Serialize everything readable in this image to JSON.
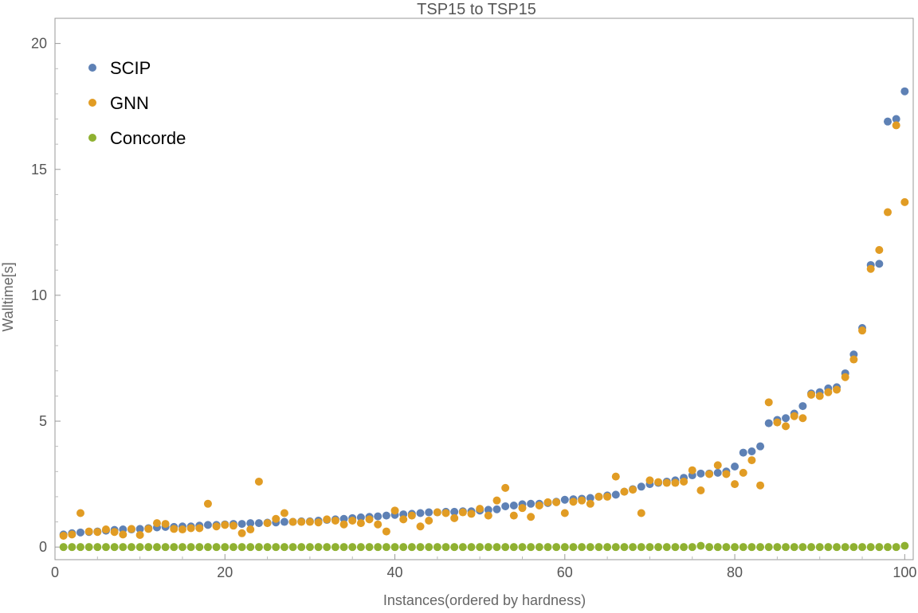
{
  "chart_data": {
    "type": "scatter",
    "title": "TSP15 to TSP15",
    "xlabel": "Instances(ordered by hardness)",
    "ylabel": "Walltime[s]",
    "xlim": [
      0,
      101
    ],
    "ylim": [
      -0.5,
      21
    ],
    "xticks": [
      0,
      20,
      40,
      60,
      80,
      100
    ],
    "yticks": [
      0,
      5,
      10,
      15,
      20
    ],
    "legend_position": "top-left",
    "x": [
      1,
      2,
      3,
      4,
      5,
      6,
      7,
      8,
      9,
      10,
      11,
      12,
      13,
      14,
      15,
      16,
      17,
      18,
      19,
      20,
      21,
      22,
      23,
      24,
      25,
      26,
      27,
      28,
      29,
      30,
      31,
      32,
      33,
      34,
      35,
      36,
      37,
      38,
      39,
      40,
      41,
      42,
      43,
      44,
      45,
      46,
      47,
      48,
      49,
      50,
      51,
      52,
      53,
      54,
      55,
      56,
      57,
      58,
      59,
      60,
      61,
      62,
      63,
      64,
      65,
      66,
      67,
      68,
      69,
      70,
      71,
      72,
      73,
      74,
      75,
      76,
      77,
      78,
      79,
      80,
      81,
      82,
      83,
      84,
      85,
      86,
      87,
      88,
      89,
      90,
      91,
      92,
      93,
      94,
      95,
      96,
      97,
      98,
      99,
      100
    ],
    "series": [
      {
        "name": "SCIP",
        "color": "#5E81B5",
        "values": [
          0.5,
          0.55,
          0.58,
          0.6,
          0.62,
          0.65,
          0.68,
          0.7,
          0.7,
          0.72,
          0.75,
          0.78,
          0.8,
          0.8,
          0.82,
          0.82,
          0.85,
          0.88,
          0.88,
          0.9,
          0.92,
          0.92,
          0.95,
          0.95,
          0.97,
          0.98,
          1.0,
          1.0,
          1.02,
          1.02,
          1.05,
          1.08,
          1.1,
          1.12,
          1.15,
          1.18,
          1.2,
          1.22,
          1.25,
          1.28,
          1.3,
          1.32,
          1.35,
          1.38,
          1.38,
          1.4,
          1.4,
          1.42,
          1.42,
          1.45,
          1.48,
          1.5,
          1.62,
          1.65,
          1.7,
          1.72,
          1.72,
          1.75,
          1.8,
          1.88,
          1.9,
          1.92,
          1.95,
          2.0,
          2.05,
          2.08,
          2.2,
          2.3,
          2.4,
          2.5,
          2.55,
          2.6,
          2.65,
          2.75,
          2.85,
          2.92,
          2.92,
          2.95,
          3.0,
          3.2,
          3.75,
          3.8,
          4.0,
          4.92,
          5.05,
          5.12,
          5.3,
          5.6,
          6.1,
          6.15,
          6.3,
          6.35,
          6.9,
          7.65,
          8.7,
          11.2,
          11.25,
          16.9,
          17.0,
          18.1
        ]
      },
      {
        "name": "GNN",
        "color": "#E19C24",
        "values": [
          0.45,
          0.5,
          1.35,
          0.62,
          0.6,
          0.7,
          0.6,
          0.5,
          0.72,
          0.48,
          0.72,
          0.95,
          0.92,
          0.72,
          0.7,
          0.75,
          0.75,
          1.72,
          0.82,
          0.88,
          0.85,
          0.55,
          0.7,
          2.6,
          0.95,
          1.12,
          1.35,
          1.0,
          1.0,
          1.0,
          0.98,
          1.1,
          1.05,
          0.9,
          1.05,
          0.95,
          1.1,
          0.9,
          0.62,
          1.45,
          1.1,
          1.25,
          0.82,
          1.05,
          1.38,
          1.35,
          1.15,
          1.38,
          1.32,
          1.52,
          1.25,
          1.85,
          2.35,
          1.25,
          1.55,
          1.2,
          1.65,
          1.78,
          1.78,
          1.35,
          1.8,
          1.85,
          1.72,
          2.0,
          2.0,
          2.8,
          2.2,
          2.28,
          1.35,
          2.65,
          2.58,
          2.55,
          2.55,
          2.6,
          3.05,
          2.25,
          2.9,
          3.25,
          2.9,
          2.5,
          2.95,
          3.45,
          2.45,
          5.75,
          4.95,
          4.8,
          5.2,
          5.12,
          6.05,
          6.0,
          6.15,
          6.25,
          6.75,
          7.45,
          8.6,
          11.05,
          11.8,
          13.3,
          16.75,
          13.7
        ]
      },
      {
        "name": "Concorde",
        "color": "#8FB131",
        "values": [
          0,
          0,
          0,
          0,
          0,
          0,
          0,
          0,
          0,
          0,
          0,
          0,
          0,
          0,
          0,
          0,
          0,
          0,
          0,
          0,
          0,
          0,
          0,
          0,
          0,
          0,
          0,
          0,
          0,
          0,
          0,
          0,
          0,
          0,
          0,
          0,
          0,
          0,
          0,
          0,
          0,
          0,
          0,
          0,
          0,
          0,
          0,
          0,
          0,
          0,
          0,
          0,
          0,
          0,
          0,
          0,
          0,
          0,
          0,
          0,
          0,
          0,
          0,
          0,
          0,
          0,
          0,
          0,
          0,
          0,
          0,
          0,
          0,
          0,
          0,
          0.05,
          0,
          0,
          0,
          0,
          0,
          0,
          0,
          0,
          0,
          0,
          0,
          0,
          0,
          0,
          0,
          0,
          0,
          0,
          0,
          0,
          0,
          0,
          0,
          0.05
        ]
      }
    ]
  }
}
